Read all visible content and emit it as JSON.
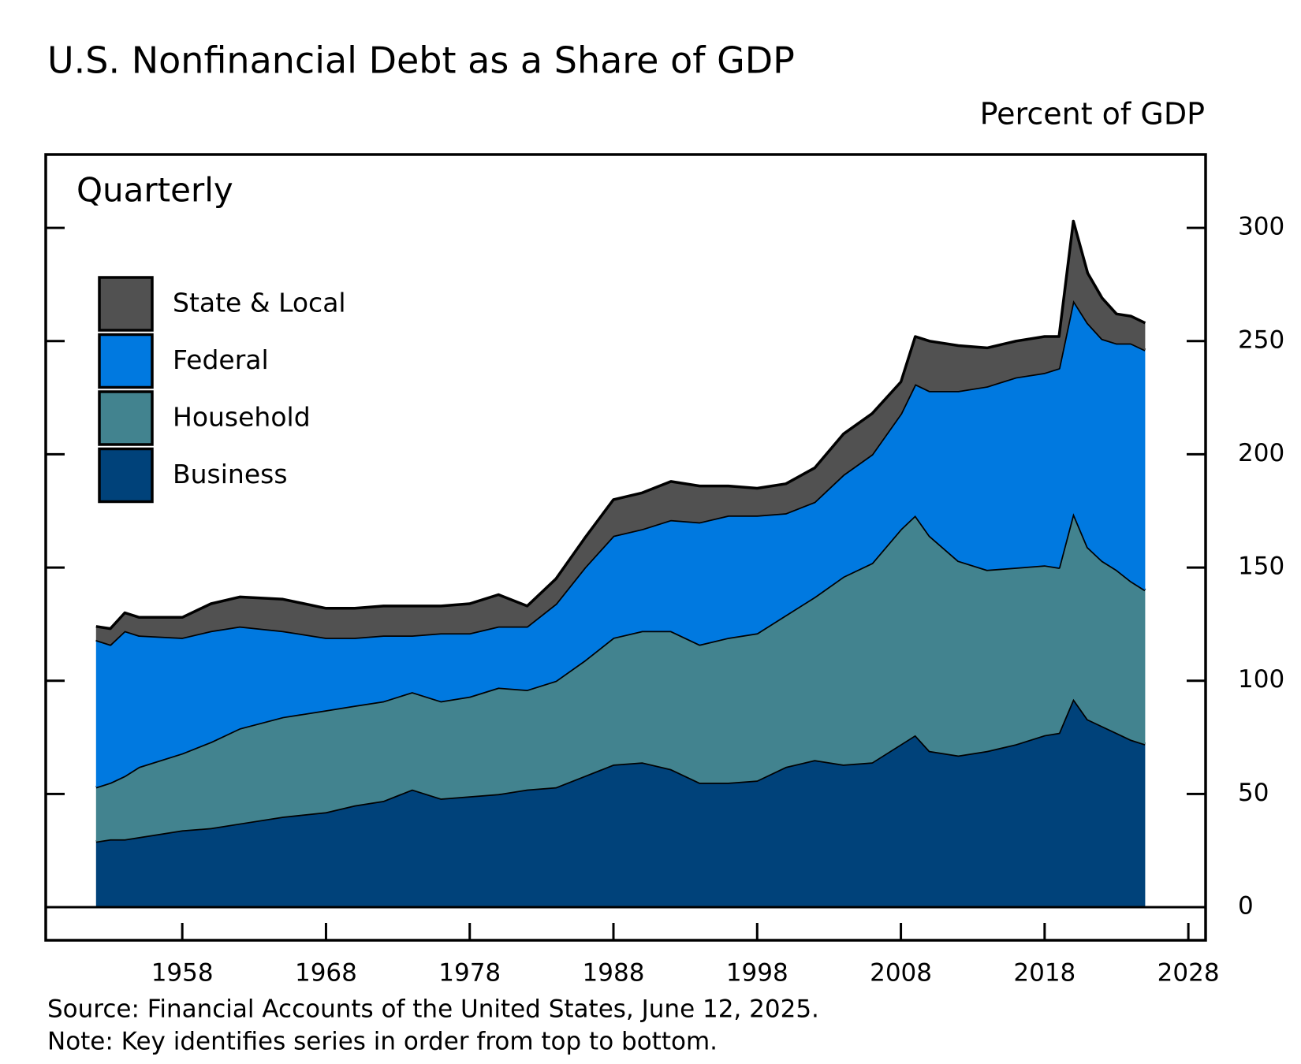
{
  "chart_data": {
    "type": "stacked_area",
    "title": "U.S. Nonfinancial Debt as a Share of GDP",
    "y_label": "Percent of GDP",
    "annotation": "Quarterly",
    "source": "Source: Financial Accounts of the United States, June 12, 2025.",
    "note": "Note: Key identifies series in order from top to bottom.",
    "x": [
      1952,
      1953,
      1954,
      1955,
      1958,
      1960,
      1962,
      1965,
      1968,
      1970,
      1972,
      1974,
      1976,
      1978,
      1980,
      1982,
      1984,
      1986,
      1988,
      1990,
      1992,
      1994,
      1996,
      1998,
      2000,
      2002,
      2004,
      2006,
      2008,
      2009,
      2010,
      2012,
      2014,
      2016,
      2018,
      2019,
      2020,
      2021,
      2022,
      2023,
      2024,
      2025
    ],
    "series": [
      {
        "name": "State & Local",
        "color": "#515151",
        "values": [
          6,
          7,
          8,
          8,
          9,
          12,
          13,
          14,
          13,
          13,
          13,
          13,
          12,
          13,
          14,
          9,
          11,
          13,
          16,
          16,
          17,
          16,
          13,
          12,
          13,
          15,
          18,
          18,
          14,
          21,
          22,
          20,
          17,
          16,
          16,
          14,
          35,
          22,
          18,
          13,
          12,
          12
        ]
      },
      {
        "name": "Federal",
        "color": "#0079e0",
        "values": [
          65,
          61,
          64,
          58,
          51,
          49,
          45,
          38,
          32,
          30,
          29,
          25,
          30,
          28,
          27,
          28,
          34,
          41,
          45,
          45,
          49,
          54,
          54,
          52,
          45,
          42,
          45,
          48,
          51,
          58,
          64,
          75,
          81,
          84,
          85,
          88,
          94,
          99,
          98,
          100,
          105,
          106
        ]
      },
      {
        "name": "Household",
        "color": "#42838f",
        "values": [
          24,
          25,
          28,
          31,
          34,
          38,
          42,
          44,
          45,
          44,
          44,
          43,
          43,
          44,
          47,
          44,
          47,
          51,
          56,
          58,
          61,
          61,
          64,
          65,
          67,
          72,
          83,
          88,
          95,
          97,
          95,
          86,
          80,
          78,
          75,
          73,
          82,
          76,
          73,
          72,
          70,
          68
        ]
      },
      {
        "name": "Business",
        "color": "#00427a",
        "values": [
          29,
          30,
          30,
          31,
          34,
          35,
          37,
          40,
          42,
          45,
          47,
          52,
          48,
          49,
          50,
          52,
          53,
          58,
          63,
          64,
          61,
          55,
          55,
          56,
          62,
          65,
          63,
          64,
          72,
          76,
          69,
          67,
          69,
          72,
          76,
          77,
          92,
          83,
          80,
          77,
          74,
          72
        ]
      }
    ],
    "xlim": [
      1948.5,
      2029.2
    ],
    "xticks": [
      1958,
      1968,
      1978,
      1988,
      1998,
      2008,
      2018,
      2028
    ],
    "ylim": [
      -14.6,
      332.4
    ],
    "yticks": [
      0,
      50,
      100,
      150,
      200,
      250,
      300
    ],
    "legend": "upper left"
  }
}
